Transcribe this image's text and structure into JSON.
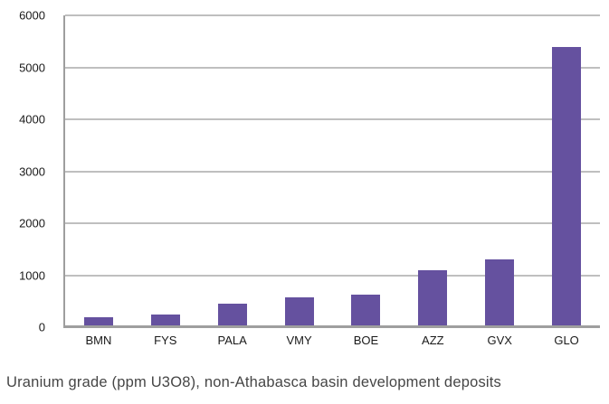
{
  "chart_data": {
    "type": "bar",
    "categories": [
      "BMN",
      "FYS",
      "PALA",
      "VMY",
      "BOE",
      "AZZ",
      "GVX",
      "GLO"
    ],
    "values": [
      200,
      250,
      450,
      570,
      620,
      1100,
      1300,
      5400
    ],
    "title": "",
    "xlabel": "",
    "ylabel": "",
    "ylim": [
      0,
      6000
    ],
    "yticks": [
      0,
      1000,
      2000,
      3000,
      4000,
      5000,
      6000
    ],
    "grid": true,
    "legend_position": "none",
    "colors": {
      "bar": "#65519F",
      "gridline": "#BFBFBF",
      "axis": "#9E9E9E",
      "tick_label": "#1A1A1A",
      "caption": "#464646",
      "background": "#FFFFFF"
    }
  },
  "caption": {
    "text": "Uranium grade (ppm U3O8), non-Athabasca basin development deposits"
  }
}
